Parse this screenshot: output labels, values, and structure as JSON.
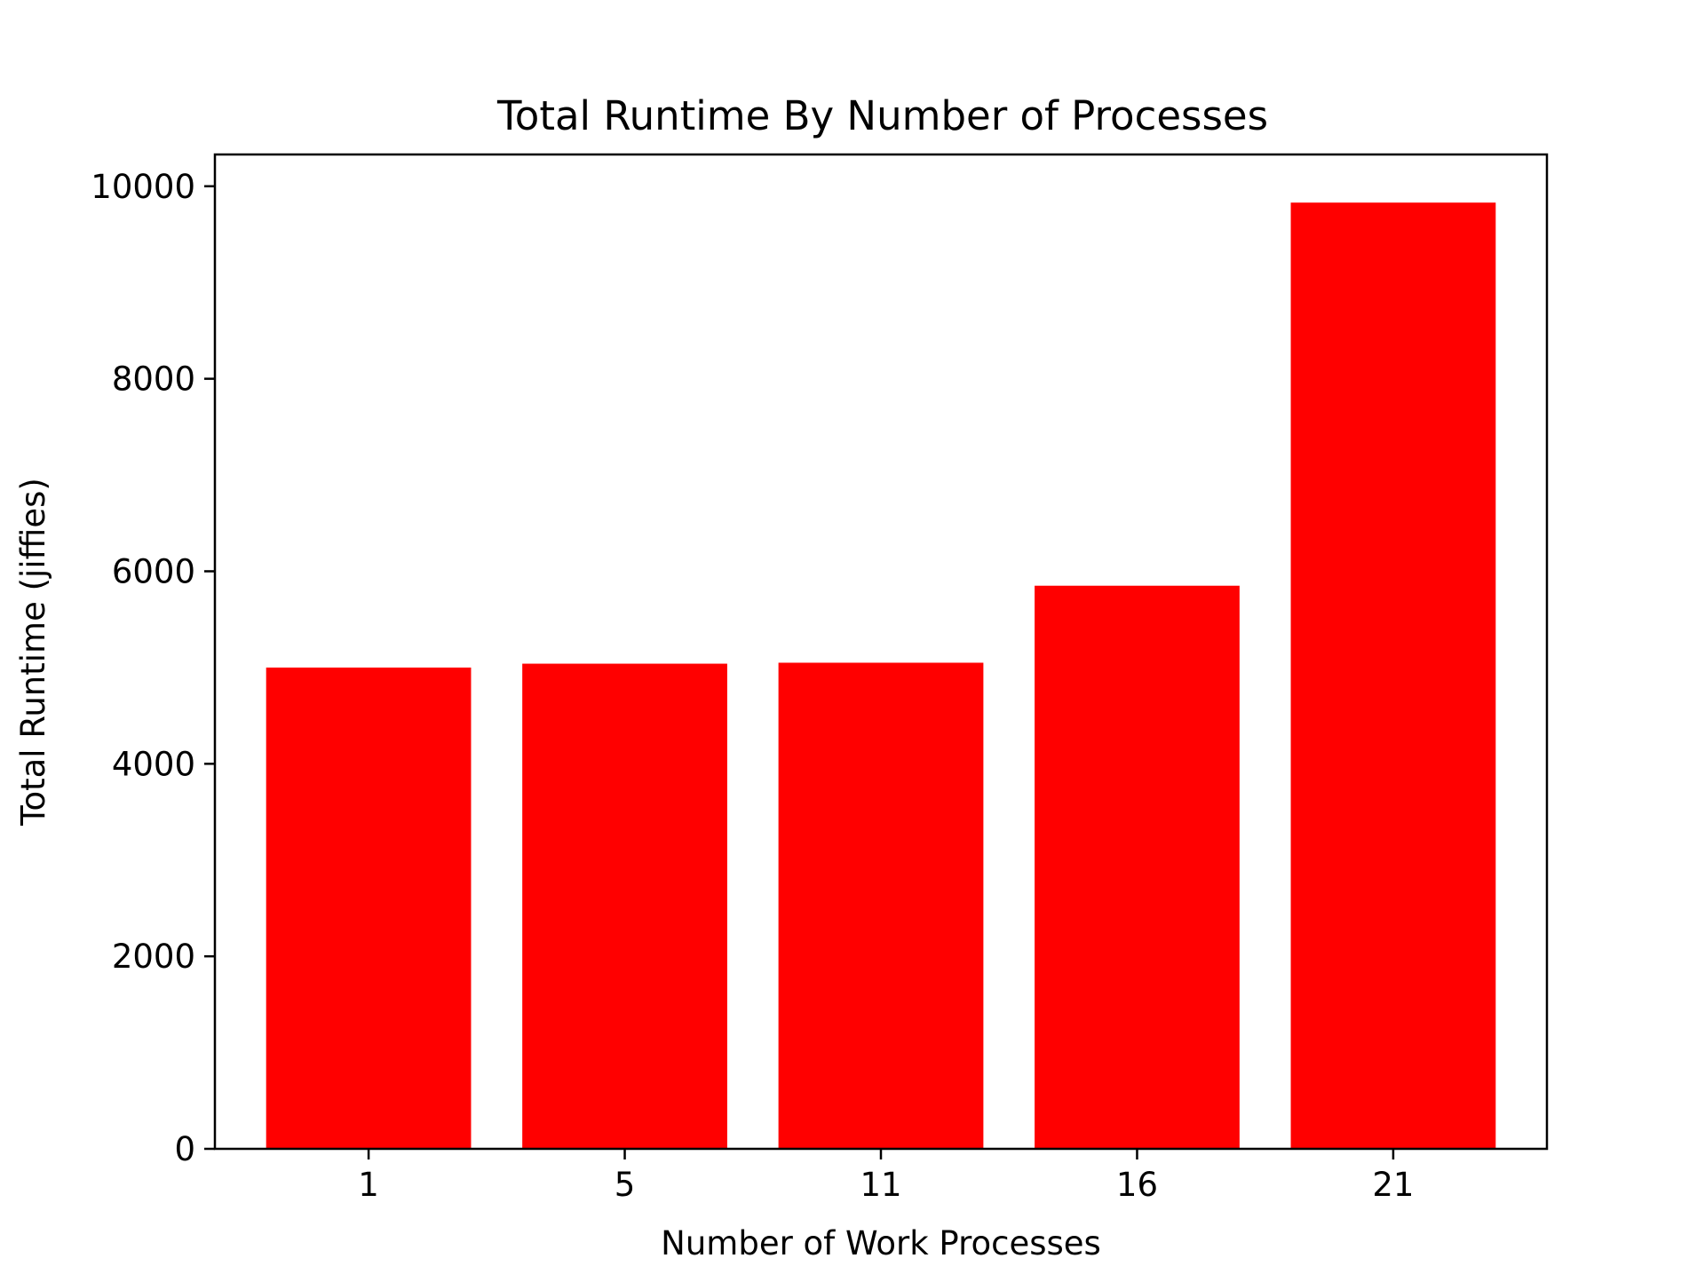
{
  "chart_data": {
    "type": "bar",
    "title": "Total Runtime By Number of Processes",
    "xlabel": "Number of Work Processes",
    "ylabel": "Total Runtime (jiffies)",
    "categories": [
      "1",
      "5",
      "11",
      "16",
      "21"
    ],
    "values": [
      5000,
      5040,
      5050,
      5850,
      9830
    ],
    "ylim": [
      0,
      10330
    ],
    "yticks": [
      0,
      2000,
      4000,
      6000,
      8000,
      10000
    ],
    "bar_color": "#ff0000",
    "grid": false,
    "legend": "none"
  }
}
